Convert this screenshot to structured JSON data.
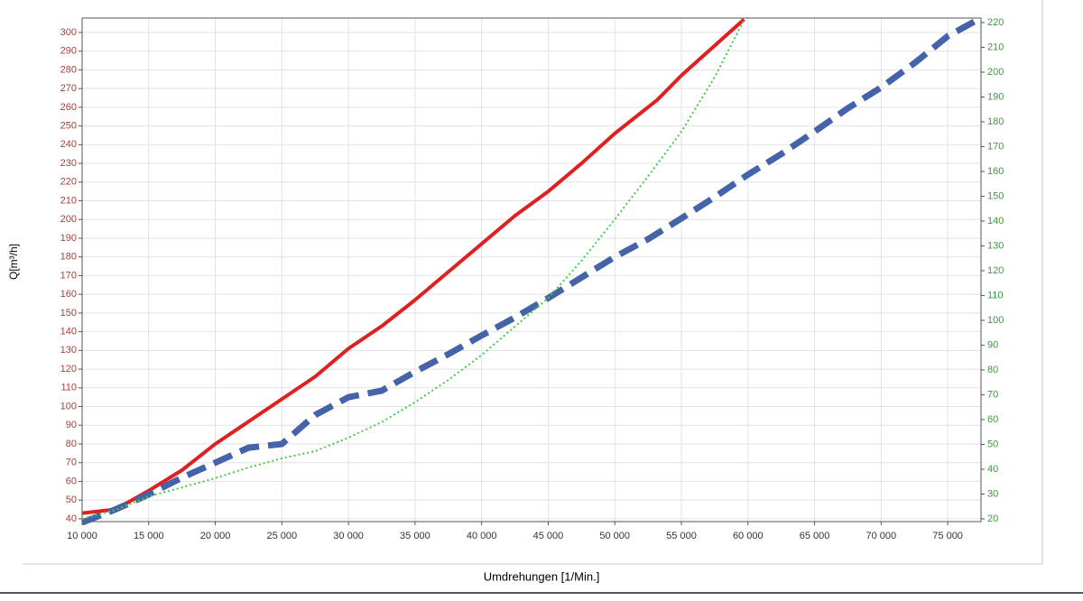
{
  "chart_data": {
    "type": "line",
    "xlabel": "Umdrehungen [1/Min.]",
    "ylabel": "Q[m³/h]",
    "grid": true,
    "xlim": [
      10000,
      77500
    ],
    "xticks": [
      {
        "value": 10000,
        "label": "10 000"
      },
      {
        "value": 15000,
        "label": "15 000"
      },
      {
        "value": 20000,
        "label": "20 000"
      },
      {
        "value": 25000,
        "label": "25 000"
      },
      {
        "value": 30000,
        "label": "30 000"
      },
      {
        "value": 35000,
        "label": "35 000"
      },
      {
        "value": 40000,
        "label": "40 000"
      },
      {
        "value": 45000,
        "label": "45 000"
      },
      {
        "value": 50000,
        "label": "50 000"
      },
      {
        "value": 55000,
        "label": "55 000"
      },
      {
        "value": 60000,
        "label": "60 000"
      },
      {
        "value": 65000,
        "label": "65 000"
      },
      {
        "value": 70000,
        "label": "70 000"
      },
      {
        "value": 75000,
        "label": "75 000"
      }
    ],
    "ylim": [
      38.5,
      307.7
    ],
    "yticks": [
      40,
      50,
      60,
      70,
      80,
      90,
      100,
      110,
      120,
      130,
      140,
      150,
      160,
      170,
      180,
      190,
      200,
      210,
      220,
      230,
      240,
      250,
      260,
      270,
      280,
      290,
      300
    ],
    "ytick_color": "#b03a3a",
    "y2lim": [
      18.9,
      221.8
    ],
    "y2ticks": [
      20,
      30,
      40,
      50,
      60,
      70,
      80,
      90,
      100,
      110,
      120,
      130,
      140,
      150,
      160,
      170,
      180,
      190,
      200,
      210,
      220
    ],
    "y2tick_color": "#3a9a3a",
    "series": [
      {
        "color": "#e02020",
        "style": "solid",
        "x": [
          10000,
          12500,
          15000,
          17500,
          20000,
          22500,
          25000,
          27500,
          30000,
          32500,
          35000,
          37500,
          40000,
          42500,
          45000,
          47500,
          50000,
          53200,
          55000,
          59700
        ],
        "values": [
          43,
          45,
          55,
          66,
          80,
          92,
          104,
          116,
          131,
          143,
          157,
          172,
          187,
          202,
          215,
          230,
          246,
          264,
          277,
          307
        ]
      },
      {
        "color": "#4463a8",
        "style": "dashed",
        "x": [
          10000,
          12500,
          15000,
          17500,
          20000,
          22500,
          25000,
          27500,
          30000,
          32500,
          35000,
          37500,
          40000,
          42500,
          45000,
          47500,
          50000,
          52500,
          55000,
          57500,
          60000,
          62500,
          65000,
          67500,
          70000,
          72500,
          75000,
          77300
        ],
        "values": [
          38,
          45,
          53,
          62,
          70,
          78,
          80,
          95.5,
          105,
          108.5,
          118.6,
          128,
          138,
          147.6,
          158,
          169,
          180,
          189.5,
          200.6,
          212,
          224,
          235,
          247,
          259.5,
          270.6,
          283.6,
          298,
          307
        ]
      },
      {
        "color": "#44cc44",
        "style": "dotted",
        "axis": "y2",
        "x": [
          10000,
          12500,
          15000,
          17500,
          20000,
          22500,
          25000,
          27500,
          30000,
          32500,
          35000,
          37500,
          40000,
          42500,
          45000,
          47500,
          50000,
          52500,
          55000,
          57500,
          59700
        ],
        "values": [
          20,
          23.6,
          29,
          32.7,
          36.4,
          40.7,
          44.4,
          47.3,
          52.7,
          59,
          67,
          76,
          86,
          97.5,
          109,
          124,
          140.7,
          158,
          176,
          198,
          221
        ]
      }
    ]
  }
}
